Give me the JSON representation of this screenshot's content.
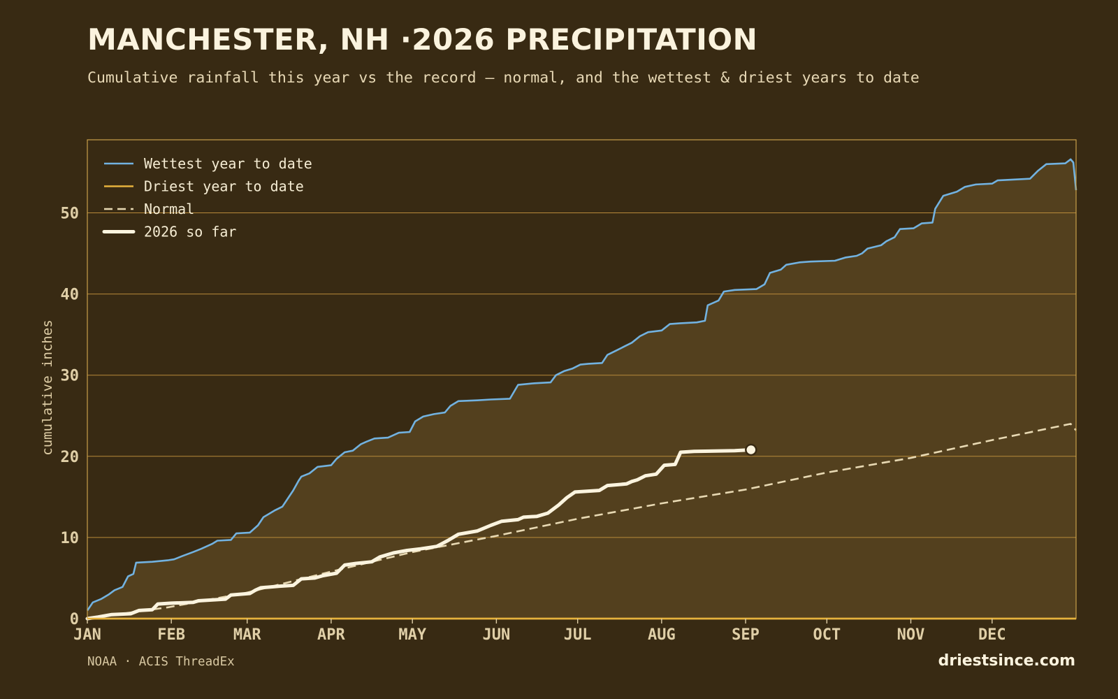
{
  "header": {
    "title": "MANCHESTER, NH ·2026 PRECIPITATION",
    "subtitle": "Cumulative rainfall this year vs the record — normal, and the wettest & driest years to date"
  },
  "footer": {
    "source": "NOAA · ACIS ThreadEx",
    "brand": "driestsince.com"
  },
  "colors": {
    "background": "#382a13",
    "band_fill": "#53401e",
    "frame": "#c9a04a",
    "grid": "#b88a3a",
    "wettest": "#72b2e0",
    "driest": "#e6b23c",
    "normal": "#e8d9b3",
    "current": "#fbf4df",
    "tick_text": "#e0cfa7"
  },
  "chart_data": {
    "type": "line",
    "title": "MANCHESTER, NH ·2026 PRECIPITATION",
    "ylabel": "cumulative inches",
    "xlabel": "",
    "x_unit": "day of year",
    "xlim": [
      1,
      366
    ],
    "ylim": [
      0,
      59
    ],
    "yticks": [
      0,
      10,
      20,
      30,
      40,
      50
    ],
    "xticks": [
      {
        "label": "JAN",
        "day": 1
      },
      {
        "label": "FEB",
        "day": 32
      },
      {
        "label": "MAR",
        "day": 60
      },
      {
        "label": "APR",
        "day": 91
      },
      {
        "label": "MAY",
        "day": 121
      },
      {
        "label": "JUN",
        "day": 152
      },
      {
        "label": "JUL",
        "day": 182
      },
      {
        "label": "AUG",
        "day": 213
      },
      {
        "label": "SEP",
        "day": 244
      },
      {
        "label": "OCT",
        "day": 274
      },
      {
        "label": "NOV",
        "day": 305
      },
      {
        "label": "DEC",
        "day": 335
      }
    ],
    "grid": true,
    "legend_position": "top-left",
    "shaded_band": "between driest and wettest year to date",
    "series": [
      {
        "name": "Wettest year to date",
        "style": "solid",
        "color": "#72b2e0",
        "points": [
          [
            1,
            1.0
          ],
          [
            3,
            2.0
          ],
          [
            6,
            2.4
          ],
          [
            9,
            3.0
          ],
          [
            11,
            3.5
          ],
          [
            14,
            3.9
          ],
          [
            16,
            5.2
          ],
          [
            18,
            5.5
          ],
          [
            19,
            6.9
          ],
          [
            25,
            7.0
          ],
          [
            31,
            7.2
          ],
          [
            33,
            7.3
          ],
          [
            36,
            7.7
          ],
          [
            40,
            8.2
          ],
          [
            43,
            8.6
          ],
          [
            47,
            9.2
          ],
          [
            49,
            9.6
          ],
          [
            54,
            9.7
          ],
          [
            56,
            10.5
          ],
          [
            61,
            10.6
          ],
          [
            64,
            11.5
          ],
          [
            66,
            12.5
          ],
          [
            70,
            13.3
          ],
          [
            73,
            13.8
          ],
          [
            77,
            15.8
          ],
          [
            79,
            17.0
          ],
          [
            80,
            17.5
          ],
          [
            83,
            17.9
          ],
          [
            86,
            18.7
          ],
          [
            91,
            18.9
          ],
          [
            93,
            19.7
          ],
          [
            96,
            20.5
          ],
          [
            99,
            20.7
          ],
          [
            102,
            21.5
          ],
          [
            104,
            21.8
          ],
          [
            107,
            22.2
          ],
          [
            112,
            22.3
          ],
          [
            116,
            22.9
          ],
          [
            120,
            23.0
          ],
          [
            122,
            24.3
          ],
          [
            125,
            24.9
          ],
          [
            129,
            25.2
          ],
          [
            133,
            25.4
          ],
          [
            135,
            26.2
          ],
          [
            138,
            26.8
          ],
          [
            145,
            26.9
          ],
          [
            150,
            27.0
          ],
          [
            157,
            27.1
          ],
          [
            160,
            28.8
          ],
          [
            166,
            29.0
          ],
          [
            172,
            29.1
          ],
          [
            174,
            30.0
          ],
          [
            177,
            30.5
          ],
          [
            180,
            30.8
          ],
          [
            183,
            31.3
          ],
          [
            186,
            31.4
          ],
          [
            191,
            31.5
          ],
          [
            193,
            32.5
          ],
          [
            196,
            33.0
          ],
          [
            199,
            33.5
          ],
          [
            202,
            34.0
          ],
          [
            205,
            34.8
          ],
          [
            208,
            35.3
          ],
          [
            213,
            35.5
          ],
          [
            216,
            36.3
          ],
          [
            220,
            36.4
          ],
          [
            226,
            36.5
          ],
          [
            229,
            36.7
          ],
          [
            230,
            38.6
          ],
          [
            234,
            39.2
          ],
          [
            236,
            40.3
          ],
          [
            240,
            40.5
          ],
          [
            248,
            40.6
          ],
          [
            251,
            41.2
          ],
          [
            253,
            42.6
          ],
          [
            257,
            43.0
          ],
          [
            259,
            43.6
          ],
          [
            264,
            43.9
          ],
          [
            268,
            44.0
          ],
          [
            277,
            44.1
          ],
          [
            281,
            44.5
          ],
          [
            285,
            44.7
          ],
          [
            287,
            45.0
          ],
          [
            289,
            45.6
          ],
          [
            294,
            46.0
          ],
          [
            296,
            46.5
          ],
          [
            299,
            47.0
          ],
          [
            301,
            48.0
          ],
          [
            306,
            48.1
          ],
          [
            309,
            48.7
          ],
          [
            313,
            48.8
          ],
          [
            314,
            50.5
          ],
          [
            317,
            52.1
          ],
          [
            322,
            52.6
          ],
          [
            325,
            53.2
          ],
          [
            329,
            53.5
          ],
          [
            335,
            53.6
          ],
          [
            337,
            54.0
          ],
          [
            349,
            54.2
          ],
          [
            352,
            55.2
          ],
          [
            355,
            56.0
          ],
          [
            362,
            56.1
          ],
          [
            364,
            56.6
          ],
          [
            365,
            56.2
          ],
          [
            366,
            52.8
          ]
        ]
      },
      {
        "name": "Driest year to date",
        "style": "solid",
        "color": "#e6b23c",
        "points": [
          [
            1,
            0.0
          ],
          [
            366,
            0.0
          ]
        ]
      },
      {
        "name": "Normal",
        "style": "dashed",
        "color": "#e8d9b3",
        "points": [
          [
            1,
            0.0
          ],
          [
            31,
            1.4
          ],
          [
            60,
            3.2
          ],
          [
            91,
            5.8
          ],
          [
            121,
            8.2
          ],
          [
            152,
            10.2
          ],
          [
            182,
            12.3
          ],
          [
            213,
            14.2
          ],
          [
            244,
            15.9
          ],
          [
            274,
            18.0
          ],
          [
            305,
            19.8
          ],
          [
            335,
            22.0
          ],
          [
            364,
            24.0
          ],
          [
            366,
            23.2
          ]
        ]
      },
      {
        "name": "2026 so far",
        "style": "thick",
        "color": "#fbf4df",
        "points": [
          [
            1,
            0.0
          ],
          [
            5,
            0.2
          ],
          [
            10,
            0.5
          ],
          [
            17,
            0.6
          ],
          [
            20,
            1.0
          ],
          [
            25,
            1.1
          ],
          [
            27,
            1.8
          ],
          [
            32,
            1.9
          ],
          [
            40,
            2.0
          ],
          [
            42,
            2.2
          ],
          [
            52,
            2.4
          ],
          [
            54,
            2.9
          ],
          [
            61,
            3.1
          ],
          [
            63,
            3.5
          ],
          [
            65,
            3.8
          ],
          [
            72,
            4.0
          ],
          [
            77,
            4.1
          ],
          [
            80,
            4.9
          ],
          [
            85,
            5.0
          ],
          [
            88,
            5.3
          ],
          [
            93,
            5.6
          ],
          [
            96,
            6.6
          ],
          [
            100,
            6.8
          ],
          [
            106,
            7.0
          ],
          [
            109,
            7.6
          ],
          [
            114,
            8.1
          ],
          [
            119,
            8.4
          ],
          [
            124,
            8.6
          ],
          [
            130,
            8.9
          ],
          [
            134,
            9.6
          ],
          [
            138,
            10.4
          ],
          [
            145,
            10.8
          ],
          [
            150,
            11.5
          ],
          [
            154,
            12.0
          ],
          [
            160,
            12.2
          ],
          [
            162,
            12.5
          ],
          [
            167,
            12.6
          ],
          [
            171,
            13.0
          ],
          [
            175,
            14.0
          ],
          [
            178,
            14.9
          ],
          [
            181,
            15.6
          ],
          [
            190,
            15.8
          ],
          [
            193,
            16.4
          ],
          [
            200,
            16.6
          ],
          [
            202,
            16.9
          ],
          [
            204,
            17.1
          ],
          [
            207,
            17.6
          ],
          [
            211,
            17.8
          ],
          [
            214,
            18.9
          ],
          [
            218,
            19.0
          ],
          [
            220,
            20.5
          ],
          [
            225,
            20.6
          ],
          [
            240,
            20.7
          ],
          [
            246,
            20.8
          ]
        ]
      }
    ],
    "current_marker": {
      "day": 246,
      "value": 20.8
    }
  }
}
